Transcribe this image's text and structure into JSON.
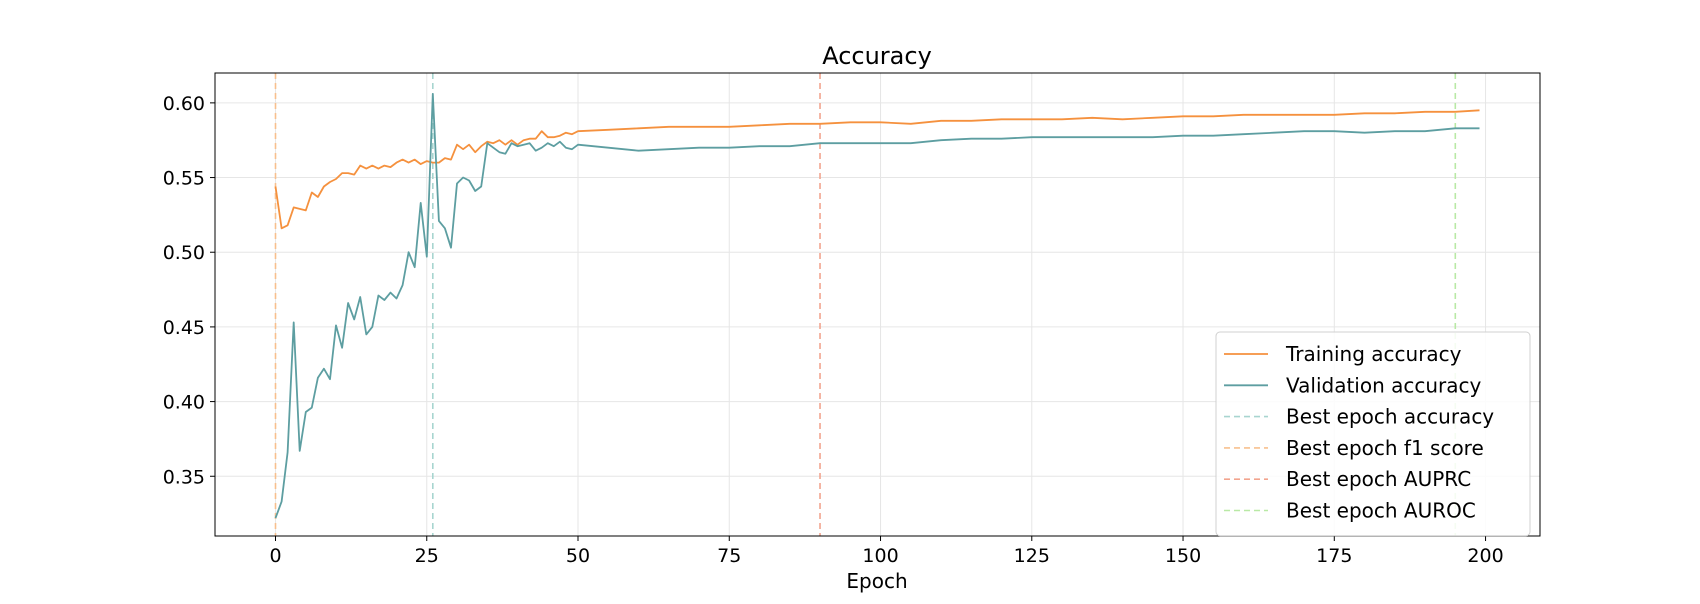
{
  "chart_data": {
    "type": "line",
    "title": "Accuracy",
    "xlabel": "Epoch",
    "ylabel": "",
    "xlim": [
      -10,
      209
    ],
    "ylim": [
      0.31,
      0.62
    ],
    "x_ticks": [
      0,
      25,
      50,
      75,
      100,
      125,
      150,
      175,
      200
    ],
    "y_ticks": [
      0.35,
      0.4,
      0.45,
      0.5,
      0.55,
      0.6
    ],
    "y_tick_labels": [
      "0.35",
      "0.40",
      "0.45",
      "0.50",
      "0.55",
      "0.60"
    ],
    "grid": true,
    "legend_position": "lower-right",
    "series": [
      {
        "name": "Training accuracy",
        "color": "#f5913e",
        "style": "solid",
        "x": [
          0,
          1,
          2,
          3,
          4,
          5,
          6,
          7,
          8,
          9,
          10,
          11,
          12,
          13,
          14,
          15,
          16,
          17,
          18,
          19,
          20,
          21,
          22,
          23,
          24,
          25,
          26,
          27,
          28,
          29,
          30,
          31,
          32,
          33,
          34,
          35,
          36,
          37,
          38,
          39,
          40,
          41,
          42,
          43,
          44,
          45,
          46,
          47,
          48,
          49,
          50,
          55,
          60,
          65,
          70,
          75,
          80,
          85,
          90,
          95,
          100,
          105,
          110,
          115,
          120,
          125,
          130,
          135,
          140,
          145,
          150,
          155,
          160,
          165,
          170,
          175,
          180,
          185,
          190,
          195,
          199
        ],
        "y": [
          0.544,
          0.516,
          0.518,
          0.53,
          0.529,
          0.528,
          0.54,
          0.537,
          0.544,
          0.547,
          0.549,
          0.553,
          0.553,
          0.552,
          0.558,
          0.556,
          0.558,
          0.556,
          0.558,
          0.557,
          0.56,
          0.562,
          0.56,
          0.562,
          0.559,
          0.561,
          0.56,
          0.56,
          0.563,
          0.562,
          0.572,
          0.569,
          0.572,
          0.567,
          0.571,
          0.574,
          0.573,
          0.575,
          0.572,
          0.575,
          0.572,
          0.575,
          0.576,
          0.576,
          0.581,
          0.577,
          0.577,
          0.578,
          0.58,
          0.579,
          0.581,
          0.582,
          0.583,
          0.584,
          0.584,
          0.584,
          0.585,
          0.586,
          0.586,
          0.587,
          0.587,
          0.586,
          0.588,
          0.588,
          0.589,
          0.589,
          0.589,
          0.59,
          0.589,
          0.59,
          0.591,
          0.591,
          0.592,
          0.592,
          0.592,
          0.592,
          0.593,
          0.593,
          0.594,
          0.594,
          0.595
        ]
      },
      {
        "name": "Validation accuracy",
        "color": "#5d9ea1",
        "style": "solid",
        "x": [
          0,
          1,
          2,
          3,
          4,
          5,
          6,
          7,
          8,
          9,
          10,
          11,
          12,
          13,
          14,
          15,
          16,
          17,
          18,
          19,
          20,
          21,
          22,
          23,
          24,
          25,
          26,
          27,
          28,
          29,
          30,
          31,
          32,
          33,
          34,
          35,
          36,
          37,
          38,
          39,
          40,
          41,
          42,
          43,
          44,
          45,
          46,
          47,
          48,
          49,
          50,
          55,
          60,
          65,
          70,
          75,
          80,
          85,
          90,
          95,
          100,
          105,
          110,
          115,
          120,
          125,
          130,
          135,
          140,
          145,
          150,
          155,
          160,
          165,
          170,
          175,
          180,
          185,
          190,
          195,
          199
        ],
        "y": [
          0.322,
          0.333,
          0.366,
          0.453,
          0.367,
          0.393,
          0.396,
          0.416,
          0.422,
          0.415,
          0.451,
          0.436,
          0.466,
          0.455,
          0.47,
          0.445,
          0.45,
          0.471,
          0.468,
          0.473,
          0.469,
          0.478,
          0.5,
          0.49,
          0.533,
          0.497,
          0.606,
          0.521,
          0.516,
          0.503,
          0.546,
          0.55,
          0.548,
          0.541,
          0.544,
          0.573,
          0.57,
          0.567,
          0.566,
          0.573,
          0.571,
          0.572,
          0.573,
          0.568,
          0.57,
          0.573,
          0.571,
          0.574,
          0.57,
          0.569,
          0.572,
          0.57,
          0.568,
          0.569,
          0.57,
          0.57,
          0.571,
          0.571,
          0.573,
          0.573,
          0.573,
          0.573,
          0.575,
          0.576,
          0.576,
          0.577,
          0.577,
          0.577,
          0.577,
          0.577,
          0.578,
          0.578,
          0.579,
          0.58,
          0.581,
          0.581,
          0.58,
          0.581,
          0.581,
          0.583,
          0.583
        ]
      }
    ],
    "vlines": [
      {
        "name": "Best epoch accuracy",
        "x": 26,
        "color": "#a8d5d0",
        "style": "dashed"
      },
      {
        "name": "Best epoch f1 score",
        "x": 0,
        "color": "#f8c08e",
        "style": "dashed"
      },
      {
        "name": "Best epoch AUPRC",
        "x": 90,
        "color": "#f2a48e",
        "style": "dashed"
      },
      {
        "name": "Best epoch AUROC",
        "x": 195,
        "color": "#b9e9a6",
        "style": "dashed"
      }
    ],
    "legend": [
      {
        "label": "Training accuracy",
        "color": "#f5913e",
        "style": "solid"
      },
      {
        "label": "Validation accuracy",
        "color": "#5d9ea1",
        "style": "solid"
      },
      {
        "label": "Best epoch accuracy",
        "color": "#a8d5d0",
        "style": "dashed"
      },
      {
        "label": "Best epoch f1 score",
        "color": "#f8c08e",
        "style": "dashed"
      },
      {
        "label": "Best epoch AUPRC",
        "color": "#f2a48e",
        "style": "dashed"
      },
      {
        "label": "Best epoch AUROC",
        "color": "#b9e9a6",
        "style": "dashed"
      }
    ]
  }
}
